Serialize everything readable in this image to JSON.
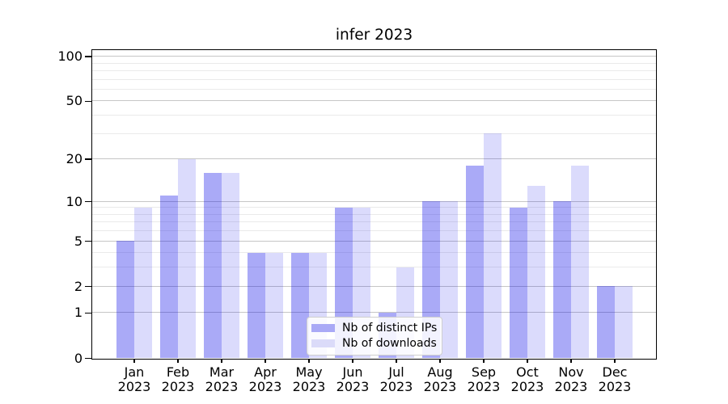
{
  "title": "infer 2023",
  "chart_data": {
    "type": "bar",
    "title": "infer 2023",
    "categories": [
      "Jan",
      "Feb",
      "Mar",
      "Apr",
      "May",
      "Jun",
      "Jul",
      "Aug",
      "Sep",
      "Oct",
      "Nov",
      "Dec"
    ],
    "category_year": "2023",
    "series": [
      {
        "name": "Nb of distinct IPs",
        "swatch": "#a9a9f6",
        "fill": "rgba(10,10,233,0.345)",
        "values": [
          5,
          11,
          16,
          4,
          4,
          9,
          1,
          10,
          18,
          9,
          10,
          2
        ]
      },
      {
        "name": "Nb of downloads",
        "swatch": "#dbdbf9",
        "fill": "rgba(10,10,233,0.145)",
        "values": [
          9,
          20,
          16,
          4,
          4,
          9,
          3,
          10,
          30,
          13,
          18,
          2
        ]
      }
    ],
    "yscale": "log1p",
    "ylim": [
      0,
      110
    ],
    "yticks": [
      0,
      1,
      2,
      5,
      10,
      20,
      50,
      100
    ],
    "yticks_minor": [
      3,
      4,
      6,
      7,
      8,
      9,
      30,
      40,
      60,
      70,
      80,
      90
    ],
    "grid": {
      "major_color": "#c6c6c6",
      "minor_color": "#eaeaea"
    },
    "legend_position": "lower center"
  }
}
